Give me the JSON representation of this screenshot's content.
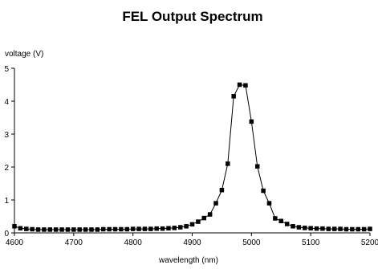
{
  "chart_data": {
    "type": "line",
    "title": "FEL Output Spectrum",
    "xlabel": "wavelength (nm)",
    "ylabel": "voltage (V)",
    "xlim": [
      4600,
      5200
    ],
    "ylim": [
      0,
      5
    ],
    "xticks": [
      "4600",
      "4700",
      "4800",
      "4900",
      "5000",
      "5100",
      "5200"
    ],
    "yticks": [
      "0",
      "1",
      "2",
      "3",
      "4",
      "5"
    ],
    "grid": false,
    "legend": "none",
    "markers": "filled-square",
    "line_color": "#000000",
    "series": [
      {
        "x": [
          4600,
          4610,
          4620,
          4630,
          4640,
          4650,
          4660,
          4670,
          4680,
          4690,
          4700,
          4710,
          4720,
          4730,
          4740,
          4750,
          4760,
          4770,
          4780,
          4790,
          4800,
          4810,
          4820,
          4830,
          4840,
          4850,
          4860,
          4870,
          4880,
          4890,
          4900,
          4910,
          4920,
          4930,
          4940,
          4950,
          4960,
          4970,
          4980,
          4990,
          5000,
          5010,
          5020,
          5030,
          5040,
          5050,
          5060,
          5070,
          5080,
          5090,
          5100,
          5110,
          5120,
          5130,
          5140,
          5150,
          5160,
          5170,
          5180,
          5190,
          5200
        ],
        "values": [
          0.2,
          0.14,
          0.12,
          0.11,
          0.1,
          0.1,
          0.1,
          0.1,
          0.1,
          0.1,
          0.1,
          0.1,
          0.1,
          0.1,
          0.1,
          0.11,
          0.11,
          0.11,
          0.11,
          0.11,
          0.12,
          0.12,
          0.12,
          0.12,
          0.13,
          0.13,
          0.14,
          0.15,
          0.17,
          0.2,
          0.26,
          0.34,
          0.45,
          0.56,
          0.9,
          1.3,
          2.1,
          4.15,
          4.5,
          4.48,
          3.38,
          2.02,
          1.28,
          0.9,
          0.44,
          0.36,
          0.27,
          0.2,
          0.17,
          0.15,
          0.14,
          0.13,
          0.13,
          0.12,
          0.12,
          0.12,
          0.11,
          0.11,
          0.11,
          0.11,
          0.12
        ]
      }
    ]
  }
}
